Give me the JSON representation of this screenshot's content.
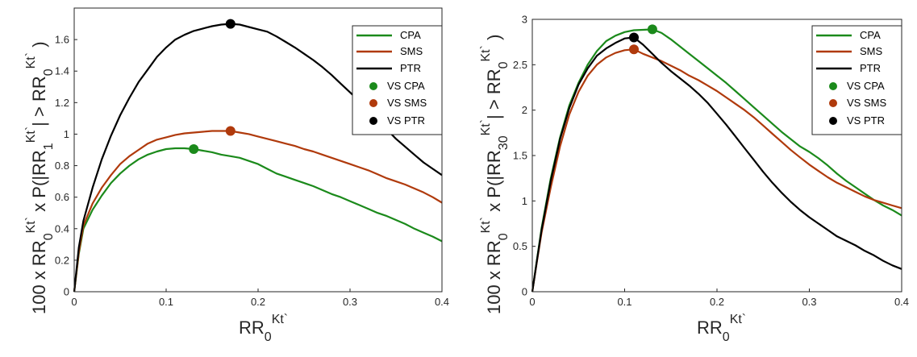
{
  "chart_data": [
    {
      "type": "line",
      "xlabel": "RR0Kt`",
      "ylabel": "100 x RR0Kt` x P(|RR1Kt`| > RR0Kt`)",
      "xlim": [
        0,
        0.4
      ],
      "ylim": [
        0,
        1.8
      ],
      "xticks": [
        "0",
        "0.1",
        "0.2",
        "0.3",
        "0.4"
      ],
      "yticks": [
        "0",
        "0.2",
        "0.4",
        "0.6",
        "0.8",
        "1",
        "1.2",
        "1.4",
        "1.6"
      ],
      "legend_position": "top-right",
      "grid": false,
      "series": [
        {
          "name": "CPA",
          "color": "#1b8a1b",
          "x": [
            0,
            0.005,
            0.01,
            0.02,
            0.03,
            0.04,
            0.05,
            0.06,
            0.07,
            0.08,
            0.09,
            0.1,
            0.11,
            0.12,
            0.13,
            0.14,
            0.15,
            0.16,
            0.17,
            0.18,
            0.19,
            0.2,
            0.21,
            0.22,
            0.23,
            0.24,
            0.25,
            0.26,
            0.27,
            0.28,
            0.29,
            0.3,
            0.31,
            0.32,
            0.33,
            0.34,
            0.35,
            0.36,
            0.37,
            0.38,
            0.39,
            0.4
          ],
          "y": [
            0,
            0.24,
            0.4,
            0.52,
            0.61,
            0.69,
            0.75,
            0.8,
            0.84,
            0.87,
            0.89,
            0.905,
            0.91,
            0.91,
            0.905,
            0.895,
            0.885,
            0.87,
            0.86,
            0.85,
            0.83,
            0.81,
            0.78,
            0.75,
            0.73,
            0.71,
            0.69,
            0.67,
            0.645,
            0.62,
            0.6,
            0.575,
            0.55,
            0.525,
            0.5,
            0.48,
            0.455,
            0.43,
            0.4,
            0.375,
            0.35,
            0.32
          ]
        },
        {
          "name": "SMS",
          "color": "#b03a0c",
          "x": [
            0,
            0.005,
            0.01,
            0.02,
            0.03,
            0.04,
            0.05,
            0.06,
            0.07,
            0.08,
            0.09,
            0.1,
            0.11,
            0.12,
            0.13,
            0.14,
            0.15,
            0.16,
            0.17,
            0.18,
            0.19,
            0.2,
            0.21,
            0.22,
            0.23,
            0.24,
            0.25,
            0.26,
            0.27,
            0.28,
            0.29,
            0.3,
            0.31,
            0.32,
            0.33,
            0.34,
            0.35,
            0.36,
            0.37,
            0.38,
            0.39,
            0.4
          ],
          "y": [
            0,
            0.25,
            0.42,
            0.56,
            0.66,
            0.74,
            0.81,
            0.86,
            0.9,
            0.94,
            0.965,
            0.98,
            0.995,
            1.005,
            1.01,
            1.015,
            1.02,
            1.02,
            1.02,
            1.01,
            1.0,
            0.985,
            0.97,
            0.955,
            0.94,
            0.925,
            0.905,
            0.89,
            0.87,
            0.85,
            0.83,
            0.81,
            0.79,
            0.77,
            0.745,
            0.72,
            0.7,
            0.68,
            0.655,
            0.63,
            0.6,
            0.565
          ]
        },
        {
          "name": "PTR",
          "color": "#000000",
          "x": [
            0,
            0.005,
            0.01,
            0.02,
            0.03,
            0.04,
            0.05,
            0.06,
            0.07,
            0.08,
            0.09,
            0.1,
            0.11,
            0.12,
            0.13,
            0.14,
            0.15,
            0.16,
            0.17,
            0.18,
            0.19,
            0.2,
            0.21,
            0.22,
            0.23,
            0.24,
            0.25,
            0.26,
            0.27,
            0.28,
            0.29,
            0.3,
            0.31,
            0.32,
            0.33,
            0.34,
            0.35,
            0.36,
            0.37,
            0.38,
            0.39,
            0.4
          ],
          "y": [
            0,
            0.28,
            0.45,
            0.66,
            0.84,
            0.99,
            1.12,
            1.23,
            1.33,
            1.41,
            1.49,
            1.55,
            1.6,
            1.63,
            1.655,
            1.67,
            1.685,
            1.695,
            1.7,
            1.695,
            1.68,
            1.665,
            1.65,
            1.62,
            1.585,
            1.55,
            1.51,
            1.47,
            1.425,
            1.375,
            1.32,
            1.265,
            1.21,
            1.15,
            1.09,
            1.03,
            0.97,
            0.92,
            0.87,
            0.82,
            0.78,
            0.74
          ]
        }
      ],
      "markers": [
        {
          "name": "VS CPA",
          "color": "#1b8a1b",
          "x": 0.13,
          "y": 0.905
        },
        {
          "name": "VS SMS",
          "color": "#b03a0c",
          "x": 0.17,
          "y": 1.02
        },
        {
          "name": "VS PTR",
          "color": "#000000",
          "x": 0.17,
          "y": 1.7
        }
      ]
    },
    {
      "type": "line",
      "xlabel": "RR0Kt`",
      "ylabel": "100 x RR0Kt` x P(|RR30Kt`| > RR0Kt`)",
      "xlim": [
        0,
        0.4
      ],
      "ylim": [
        0,
        3
      ],
      "xticks": [
        "0",
        "0.1",
        "0.2",
        "0.3",
        "0.4"
      ],
      "yticks": [
        "0",
        "0.5",
        "1",
        "1.5",
        "2",
        "2.5",
        "3"
      ],
      "legend_position": "top-right",
      "grid": false,
      "series": [
        {
          "name": "CPA",
          "color": "#1b8a1b",
          "x": [
            0,
            0.005,
            0.01,
            0.02,
            0.03,
            0.04,
            0.05,
            0.06,
            0.07,
            0.08,
            0.09,
            0.1,
            0.11,
            0.12,
            0.13,
            0.14,
            0.15,
            0.16,
            0.17,
            0.18,
            0.19,
            0.2,
            0.21,
            0.22,
            0.23,
            0.24,
            0.25,
            0.26,
            0.27,
            0.28,
            0.29,
            0.3,
            0.31,
            0.32,
            0.33,
            0.34,
            0.35,
            0.36,
            0.37,
            0.38,
            0.39,
            0.4
          ],
          "y": [
            0,
            0.35,
            0.7,
            1.25,
            1.7,
            2.05,
            2.3,
            2.5,
            2.65,
            2.76,
            2.82,
            2.86,
            2.88,
            2.885,
            2.89,
            2.85,
            2.78,
            2.7,
            2.62,
            2.54,
            2.46,
            2.38,
            2.3,
            2.21,
            2.12,
            2.03,
            1.94,
            1.85,
            1.76,
            1.68,
            1.6,
            1.54,
            1.47,
            1.39,
            1.3,
            1.22,
            1.15,
            1.08,
            1.01,
            0.95,
            0.9,
            0.84
          ]
        },
        {
          "name": "SMS",
          "color": "#b03a0c",
          "x": [
            0,
            0.005,
            0.01,
            0.02,
            0.03,
            0.04,
            0.05,
            0.06,
            0.07,
            0.08,
            0.09,
            0.1,
            0.11,
            0.12,
            0.13,
            0.14,
            0.15,
            0.16,
            0.17,
            0.18,
            0.19,
            0.2,
            0.21,
            0.22,
            0.23,
            0.24,
            0.25,
            0.26,
            0.27,
            0.28,
            0.29,
            0.3,
            0.31,
            0.32,
            0.33,
            0.34,
            0.35,
            0.36,
            0.37,
            0.38,
            0.39,
            0.4
          ],
          "y": [
            0,
            0.33,
            0.65,
            1.15,
            1.6,
            1.95,
            2.2,
            2.38,
            2.5,
            2.58,
            2.63,
            2.66,
            2.67,
            2.62,
            2.58,
            2.54,
            2.49,
            2.44,
            2.38,
            2.33,
            2.27,
            2.21,
            2.14,
            2.07,
            2.0,
            1.92,
            1.83,
            1.74,
            1.65,
            1.56,
            1.48,
            1.4,
            1.33,
            1.26,
            1.2,
            1.15,
            1.1,
            1.05,
            1.01,
            0.98,
            0.95,
            0.92
          ]
        },
        {
          "name": "PTR",
          "color": "#000000",
          "x": [
            0,
            0.005,
            0.01,
            0.02,
            0.03,
            0.04,
            0.05,
            0.06,
            0.07,
            0.08,
            0.09,
            0.1,
            0.11,
            0.12,
            0.13,
            0.14,
            0.15,
            0.16,
            0.17,
            0.18,
            0.19,
            0.2,
            0.21,
            0.22,
            0.23,
            0.24,
            0.25,
            0.26,
            0.27,
            0.28,
            0.29,
            0.3,
            0.31,
            0.32,
            0.33,
            0.34,
            0.35,
            0.36,
            0.37,
            0.38,
            0.39,
            0.4
          ],
          "y": [
            0,
            0.34,
            0.68,
            1.22,
            1.68,
            2.02,
            2.28,
            2.46,
            2.6,
            2.68,
            2.74,
            2.79,
            2.8,
            2.72,
            2.62,
            2.52,
            2.43,
            2.35,
            2.27,
            2.18,
            2.08,
            1.96,
            1.84,
            1.71,
            1.58,
            1.45,
            1.32,
            1.2,
            1.09,
            0.99,
            0.9,
            0.82,
            0.75,
            0.68,
            0.61,
            0.56,
            0.51,
            0.45,
            0.4,
            0.34,
            0.29,
            0.25
          ]
        }
      ],
      "markers": [
        {
          "name": "VS CPA",
          "color": "#1b8a1b",
          "x": 0.13,
          "y": 2.89
        },
        {
          "name": "VS SMS",
          "color": "#b03a0c",
          "x": 0.11,
          "y": 2.67
        },
        {
          "name": "VS PTR",
          "color": "#000000",
          "x": 0.11,
          "y": 2.8
        }
      ]
    }
  ]
}
